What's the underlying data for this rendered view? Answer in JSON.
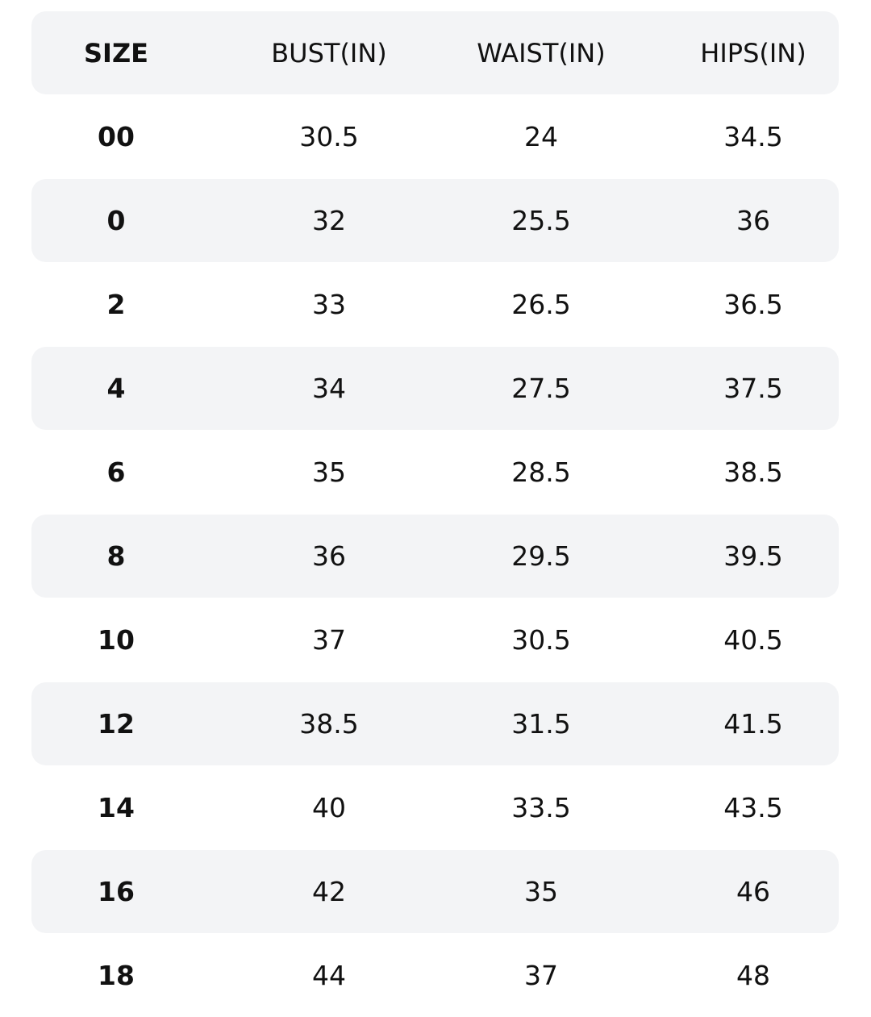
{
  "table": {
    "header": [
      "SIZE",
      "BUST(IN)",
      "WAIST(IN)",
      "HIPS(IN)"
    ],
    "rows": [
      [
        "00",
        "30.5",
        "24",
        "34.5"
      ],
      [
        "0",
        "32",
        "25.5",
        "36"
      ],
      [
        "2",
        "33",
        "26.5",
        "36.5"
      ],
      [
        "4",
        "34",
        "27.5",
        "37.5"
      ],
      [
        "6",
        "35",
        "28.5",
        "38.5"
      ],
      [
        "8",
        "36",
        "29.5",
        "39.5"
      ],
      [
        "10",
        "37",
        "30.5",
        "40.5"
      ],
      [
        "12",
        "38.5",
        "31.5",
        "41.5"
      ],
      [
        "14",
        "40",
        "33.5",
        "43.5"
      ],
      [
        "16",
        "42",
        "35",
        "46"
      ],
      [
        "18",
        "44",
        "37",
        "48"
      ]
    ]
  }
}
